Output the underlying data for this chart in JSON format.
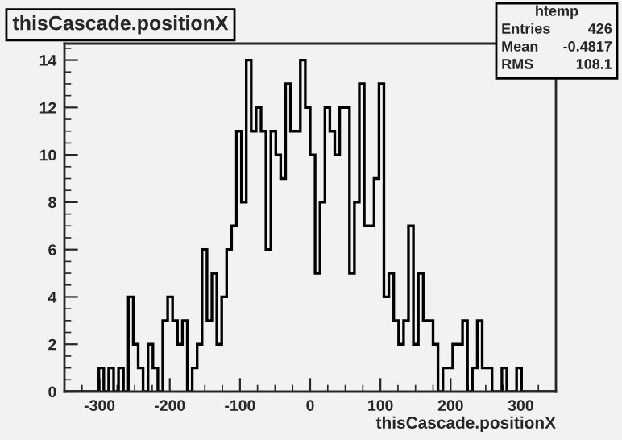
{
  "chart_data": {
    "type": "histogram",
    "title": "thisCascade.positionX",
    "xlabel": "thisCascade.positionX",
    "bins": [
      -350,
      -343,
      -336,
      -329,
      -322,
      -315,
      -308,
      -301,
      -294,
      -287,
      -280,
      -273,
      -266,
      -259,
      -252,
      -245,
      -238,
      -231,
      -224,
      -217,
      -210,
      -203,
      -196,
      -189,
      -182,
      -175,
      -168,
      -161,
      -154,
      -147,
      -140,
      -133,
      -126,
      -119,
      -112,
      -105,
      -98,
      -91,
      -84,
      -77,
      -70,
      -63,
      -56,
      -49,
      -42,
      -35,
      -28,
      -21,
      -14,
      -7,
      0,
      7,
      14,
      21,
      28,
      35,
      42,
      49,
      56,
      63,
      70,
      77,
      84,
      91,
      98,
      105,
      112,
      119,
      126,
      133,
      140,
      147,
      154,
      161,
      168,
      175,
      182,
      189,
      196,
      203,
      210,
      217,
      224,
      231,
      238,
      245,
      252,
      259,
      266,
      273,
      280,
      287,
      294,
      301,
      308,
      315,
      322,
      329,
      336,
      343,
      350
    ],
    "values": [
      0,
      0,
      0,
      0,
      0,
      0,
      0,
      1,
      0,
      1,
      0,
      1,
      0,
      4,
      2,
      1,
      0,
      2,
      1,
      0,
      3,
      4,
      3,
      2,
      3,
      0,
      1,
      2,
      6,
      3,
      5,
      2,
      4,
      6,
      7,
      11,
      8,
      14,
      11,
      12,
      11,
      6,
      11,
      10,
      9,
      13,
      11,
      11,
      14,
      12,
      10,
      5,
      8,
      12,
      11,
      10,
      12,
      12,
      5,
      8,
      13,
      7,
      7,
      9,
      13,
      4,
      5,
      3,
      2,
      3,
      7,
      2,
      5,
      3,
      3,
      2,
      0,
      1,
      1,
      2,
      2,
      3,
      0,
      1,
      3,
      1,
      1,
      0,
      0,
      1,
      0,
      0,
      1,
      0,
      0,
      0,
      0,
      0,
      0,
      0
    ],
    "color": "#000000",
    "xlim": [
      -350,
      350
    ],
    "ylim": [
      0,
      14.7
    ],
    "xticks": [
      -300,
      -200,
      -100,
      0,
      100,
      200,
      300
    ],
    "yticks": [
      0,
      2,
      4,
      6,
      8,
      10,
      12,
      14
    ],
    "grid": false,
    "legend": false,
    "annotations": [
      "htemp",
      "Entries",
      "426",
      "Mean",
      "-0.4817",
      "RMS",
      "108.1"
    ]
  }
}
